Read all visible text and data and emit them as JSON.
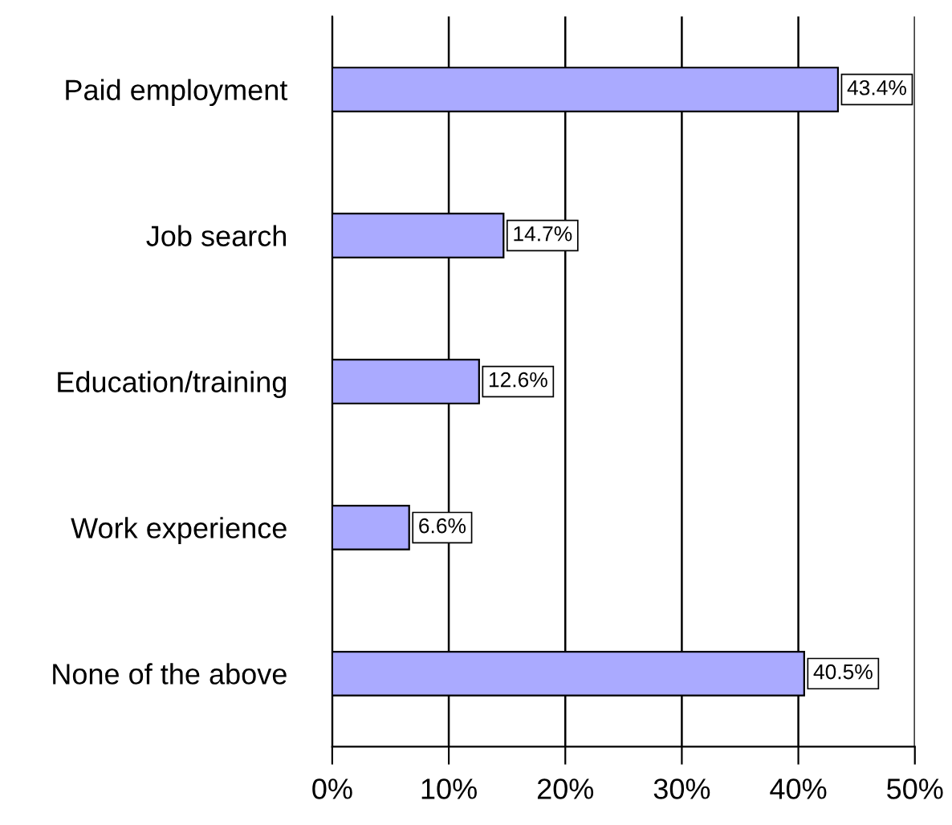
{
  "chart_data": {
    "type": "bar",
    "orientation": "horizontal",
    "categories": [
      "Paid employment",
      "Job search",
      "Education/training",
      "Work experience",
      "None of the above"
    ],
    "values": [
      43.4,
      14.7,
      12.6,
      6.6,
      40.5
    ],
    "value_labels": [
      "43.4%",
      "14.7%",
      "12.6%",
      "6.6%",
      "40.5%"
    ],
    "color": "#aaaaff",
    "xlim": [
      0,
      50
    ],
    "xticks": [
      {
        "value": 0,
        "label": "0%"
      },
      {
        "value": 10,
        "label": "10%"
      },
      {
        "value": 20,
        "label": "20%"
      },
      {
        "value": 30,
        "label": "30%"
      },
      {
        "value": 40,
        "label": "40%"
      },
      {
        "value": 50,
        "label": "50%"
      }
    ],
    "grid": "x"
  }
}
